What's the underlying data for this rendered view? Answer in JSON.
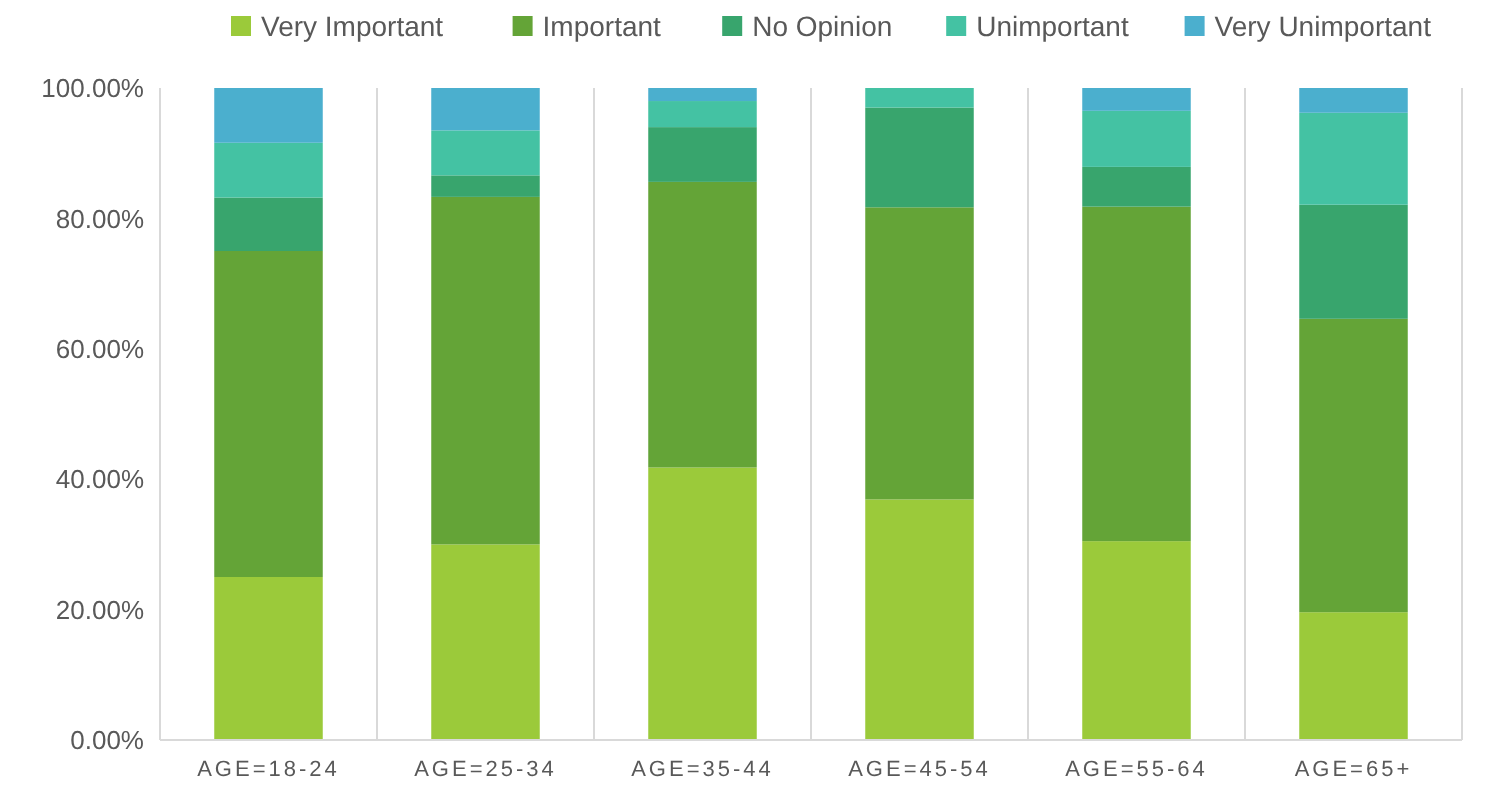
{
  "chart_data": {
    "type": "bar",
    "stacked": true,
    "categories": [
      "AGE=18-24",
      "AGE=25-34",
      "AGE=35-44",
      "AGE=45-54",
      "AGE=55-64",
      "AGE=65+"
    ],
    "series": [
      {
        "name": "Very Important",
        "color": "#9bca3a",
        "values": [
          25,
          30,
          41.8,
          36.9,
          30.5,
          19.6
        ]
      },
      {
        "name": "Important",
        "color": "#64a437",
        "values": [
          50,
          53.3,
          43.8,
          44.8,
          51.3,
          45
        ]
      },
      {
        "name": "No Opinion",
        "color": "#38a56d",
        "values": [
          8.2,
          3.3,
          8.4,
          15.3,
          6.1,
          17.5
        ]
      },
      {
        "name": "Unimportant",
        "color": "#44c2a3",
        "values": [
          8.4,
          6.9,
          4,
          3,
          8.6,
          14.1
        ]
      },
      {
        "name": "Very Unimportant",
        "color": "#4bafce",
        "values": [
          8.4,
          6.5,
          2,
          0,
          3.5,
          3.8
        ]
      }
    ],
    "ylim": [
      0,
      100
    ],
    "yticks": [
      {
        "value": 0,
        "label": "0.00%"
      },
      {
        "value": 20,
        "label": "20.00%"
      },
      {
        "value": 40,
        "label": "40.00%"
      },
      {
        "value": 60,
        "label": "60.00%"
      },
      {
        "value": 80,
        "label": "80.00%"
      },
      {
        "value": 100,
        "label": "100.00%"
      }
    ],
    "grid": "x",
    "legend": "top"
  }
}
